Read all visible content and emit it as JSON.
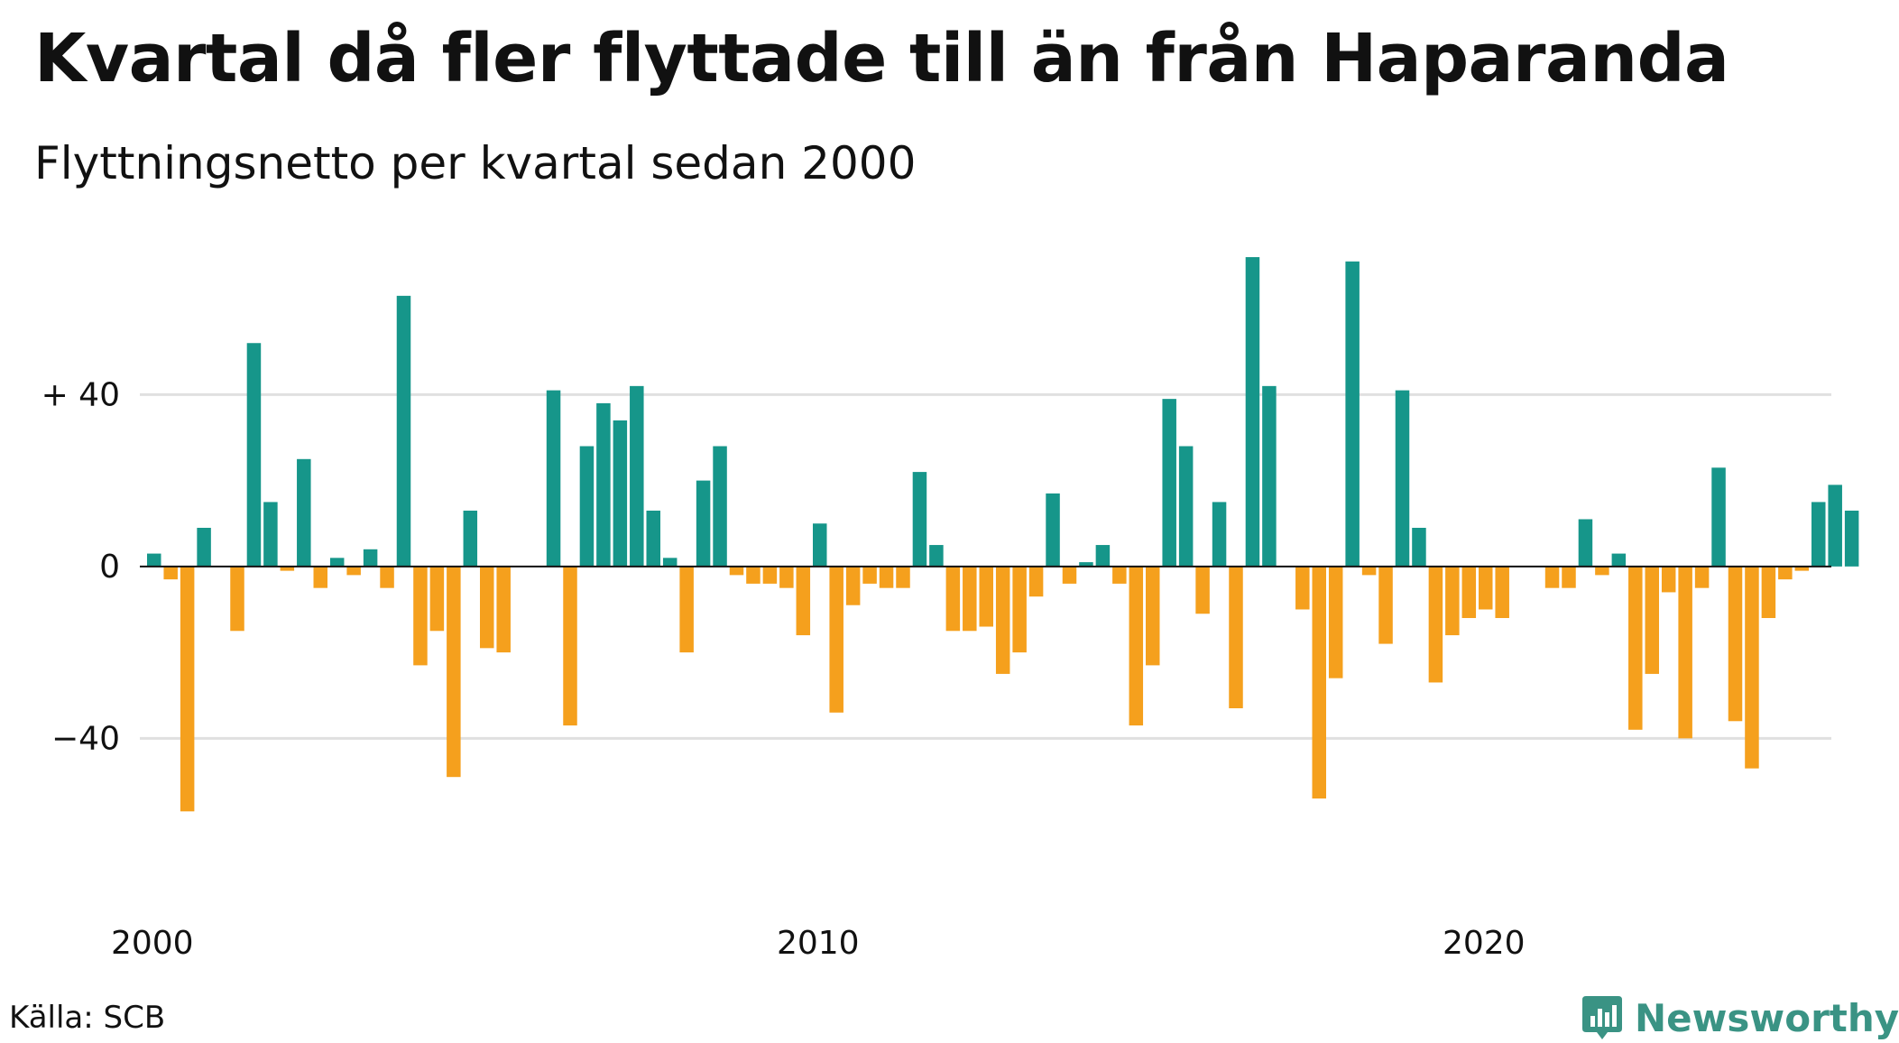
{
  "title": "Kvartal då fler flyttade till än från Haparanda",
  "subtitle": "Flyttningsnetto per kvartal sedan 2000",
  "source": "Källa: SCB",
  "brand": {
    "name": "Newsworthy",
    "icon": "newsworthy-logo-icon",
    "color": "#3a9384"
  },
  "colors": {
    "positive": "#16968a",
    "negative": "#f5a01d",
    "grid": "#e0e0e0",
    "zero": "#111111"
  },
  "chart_data": {
    "type": "bar",
    "title": "Kvartal då fler flyttade till än från Haparanda",
    "subtitle": "Flyttningsnetto per kvartal sedan 2000",
    "xlabel": "",
    "ylabel": "",
    "ylim": [
      -75,
      72
    ],
    "y_ticks": [
      {
        "value": 40,
        "label": "+ 40"
      },
      {
        "value": 0,
        "label": "0"
      },
      {
        "value": -40,
        "label": "−40"
      }
    ],
    "x_ticks": [
      {
        "value": 2000,
        "label": "2000"
      },
      {
        "value": 2010,
        "label": "2010"
      },
      {
        "value": 2020,
        "label": "2020"
      }
    ],
    "grid": true,
    "legend": "none",
    "start": "2000 Q1",
    "categories": [
      "2000 Q1",
      "2000 Q2",
      "2000 Q3",
      "2000 Q4",
      "2001 Q1",
      "2001 Q2",
      "2001 Q3",
      "2001 Q4",
      "2002 Q1",
      "2002 Q2",
      "2002 Q3",
      "2002 Q4",
      "2003 Q1",
      "2003 Q2",
      "2003 Q3",
      "2003 Q4",
      "2004 Q1",
      "2004 Q2",
      "2004 Q3",
      "2004 Q4",
      "2005 Q1",
      "2005 Q2",
      "2005 Q3",
      "2005 Q4",
      "2006 Q1",
      "2006 Q2",
      "2006 Q3",
      "2006 Q4",
      "2007 Q1",
      "2007 Q2",
      "2007 Q3",
      "2007 Q4",
      "2008 Q1",
      "2008 Q2",
      "2008 Q3",
      "2008 Q4",
      "2009 Q1",
      "2009 Q2",
      "2009 Q3",
      "2009 Q4",
      "2010 Q1",
      "2010 Q2",
      "2010 Q3",
      "2010 Q4",
      "2011 Q1",
      "2011 Q2",
      "2011 Q3",
      "2011 Q4",
      "2012 Q1",
      "2012 Q2",
      "2012 Q3",
      "2012 Q4",
      "2013 Q1",
      "2013 Q2",
      "2013 Q3",
      "2013 Q4",
      "2014 Q1",
      "2014 Q2",
      "2014 Q3",
      "2014 Q4",
      "2015 Q1",
      "2015 Q2",
      "2015 Q3",
      "2015 Q4",
      "2016 Q1",
      "2016 Q2",
      "2016 Q3",
      "2016 Q4",
      "2017 Q1",
      "2017 Q2",
      "2017 Q3",
      "2017 Q4",
      "2018 Q1",
      "2018 Q2",
      "2018 Q3",
      "2018 Q4",
      "2019 Q1",
      "2019 Q2",
      "2019 Q3",
      "2019 Q4",
      "2020 Q1",
      "2020 Q2",
      "2020 Q3",
      "2020 Q4",
      "2021 Q1",
      "2021 Q2",
      "2021 Q3",
      "2021 Q4",
      "2022 Q1",
      "2022 Q2",
      "2022 Q3",
      "2022 Q4",
      "2023 Q1",
      "2023 Q2",
      "2023 Q3",
      "2023 Q4",
      "2024 Q1",
      "2024 Q2",
      "2024 Q3",
      "2024 Q4",
      "2025 Q1",
      "2025 Q2",
      "2025 Q3"
    ],
    "values": [
      3,
      -3,
      -57,
      9,
      0,
      -15,
      52,
      15,
      -1,
      25,
      -5,
      2,
      -2,
      4,
      -5,
      63,
      -23,
      -15,
      -49,
      13,
      -19,
      -20,
      0,
      0,
      41,
      -37,
      28,
      38,
      34,
      42,
      13,
      2,
      -20,
      20,
      28,
      -2,
      -4,
      -4,
      -5,
      -16,
      10,
      -34,
      -9,
      -4,
      -5,
      -5,
      22,
      5,
      -15,
      -15,
      -14,
      -25,
      -20,
      -7,
      17,
      -4,
      1,
      5,
      -4,
      -37,
      -23,
      39,
      28,
      -11,
      15,
      -33,
      72,
      42,
      0,
      -10,
      -54,
      -26,
      71,
      -2,
      -18,
      41,
      9,
      -27,
      -16,
      -12,
      -10,
      -12,
      0,
      0,
      -5,
      -5,
      11,
      -2,
      3,
      -38,
      -25,
      -6,
      -40,
      -5,
      23,
      -36,
      -47,
      -12,
      -3,
      -1,
      15,
      19,
      13
    ]
  }
}
